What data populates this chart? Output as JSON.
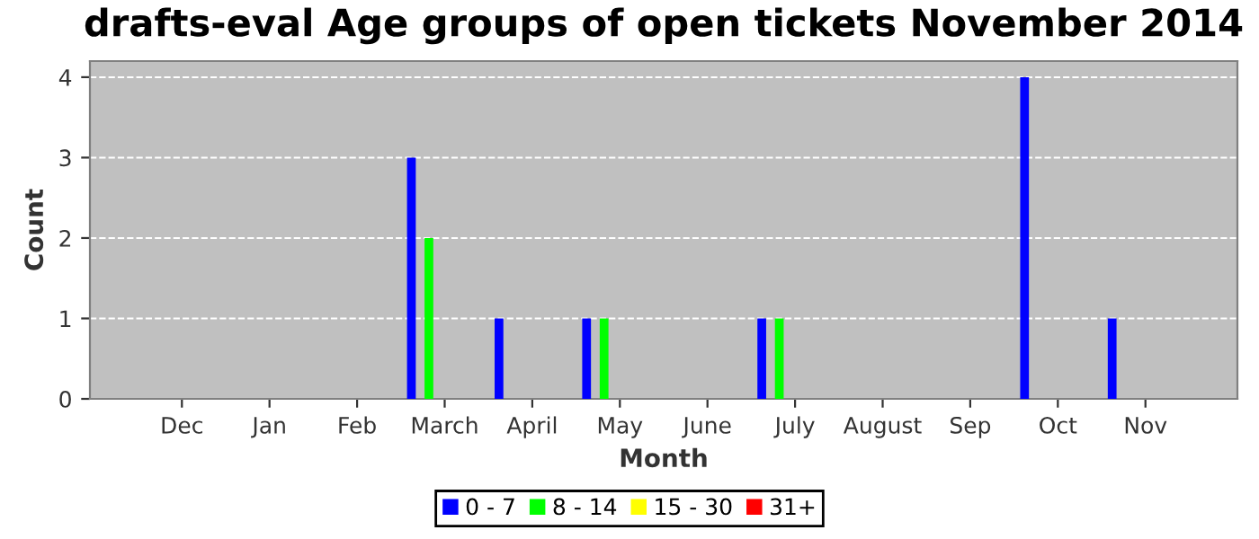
{
  "chart_data": {
    "type": "bar",
    "title": "drafts-eval Age groups of open tickets November 2014",
    "xlabel": "Month",
    "ylabel": "Count",
    "categories": [
      "Dec",
      "Jan",
      "Feb",
      "March",
      "April",
      "May",
      "June",
      "July",
      "August",
      "Sep",
      "Oct",
      "Nov"
    ],
    "series": [
      {
        "name": "0 - 7",
        "color": "#0000ff",
        "values": [
          0,
          0,
          0,
          3,
          1,
          1,
          0,
          1,
          0,
          0,
          4,
          1
        ]
      },
      {
        "name": "8 - 14",
        "color": "#00ff00",
        "values": [
          0,
          0,
          0,
          2,
          0,
          1,
          0,
          1,
          0,
          0,
          0,
          0
        ]
      },
      {
        "name": "15 - 30",
        "color": "#ffff00",
        "values": [
          0,
          0,
          0,
          0,
          0,
          0,
          0,
          0,
          0,
          0,
          0,
          0
        ]
      },
      {
        "name": "31+",
        "color": "#ff0000",
        "values": [
          0,
          0,
          0,
          0,
          0,
          0,
          0,
          0,
          0,
          0,
          0,
          0
        ]
      }
    ],
    "ylim": [
      0,
      4.2
    ],
    "yticks": [
      0,
      1,
      2,
      3,
      4
    ],
    "grid": "y",
    "legend": "bottom"
  }
}
